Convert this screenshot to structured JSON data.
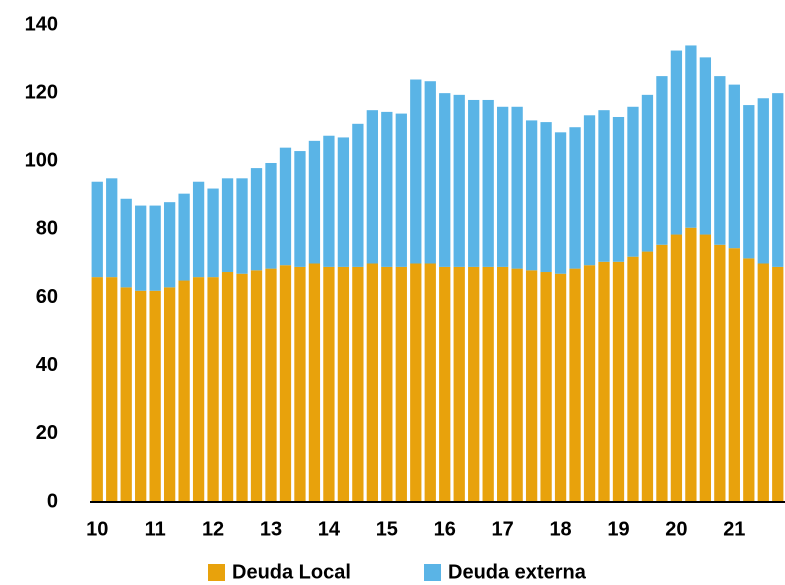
{
  "chart_data": {
    "type": "stacked_bar",
    "categories": [
      "10",
      null,
      null,
      null,
      "11",
      null,
      null,
      null,
      "12",
      null,
      null,
      null,
      "13",
      null,
      null,
      null,
      "14",
      null,
      null,
      null,
      "15",
      null,
      null,
      null,
      "16",
      null,
      null,
      null,
      "17",
      null,
      null,
      null,
      "18",
      null,
      null,
      null,
      "19",
      null,
      null,
      null,
      "20",
      null,
      null,
      null,
      "21",
      null,
      null,
      null
    ],
    "series": [
      {
        "name": "Deuda Local",
        "color": "#e8a20c",
        "values": [
          66,
          66,
          63,
          62,
          62,
          63,
          65,
          66,
          66,
          67.5,
          67,
          68,
          68.5,
          69.5,
          69,
          70,
          69,
          69,
          69,
          70,
          69,
          69,
          70,
          70,
          69,
          69,
          69,
          69,
          69,
          68.5,
          68,
          67.5,
          67,
          68.5,
          69.5,
          70.5,
          70.5,
          72,
          73.5,
          75.5,
          78.5,
          80.5,
          78.5,
          75.5,
          74.5,
          71.5,
          70,
          69
        ]
      },
      {
        "name": "Deuda externa",
        "color": "#5ab4e6",
        "values": [
          28,
          29,
          26,
          25,
          25,
          25,
          25.5,
          28,
          26,
          27.5,
          28,
          30,
          31,
          34.5,
          34,
          36,
          38.5,
          38,
          42,
          45,
          45.5,
          45,
          54,
          53.5,
          51,
          50.5,
          49,
          49,
          47,
          47.5,
          44,
          44,
          41.5,
          41.5,
          44,
          44.5,
          42.5,
          44,
          46,
          49.5,
          54,
          53.5,
          52,
          49.5,
          48,
          45,
          48.5,
          51
        ]
      }
    ],
    "ylim": [
      0,
      140
    ],
    "yticks": [
      0,
      20,
      40,
      60,
      80,
      100,
      120,
      140
    ],
    "legend": "bottom"
  }
}
